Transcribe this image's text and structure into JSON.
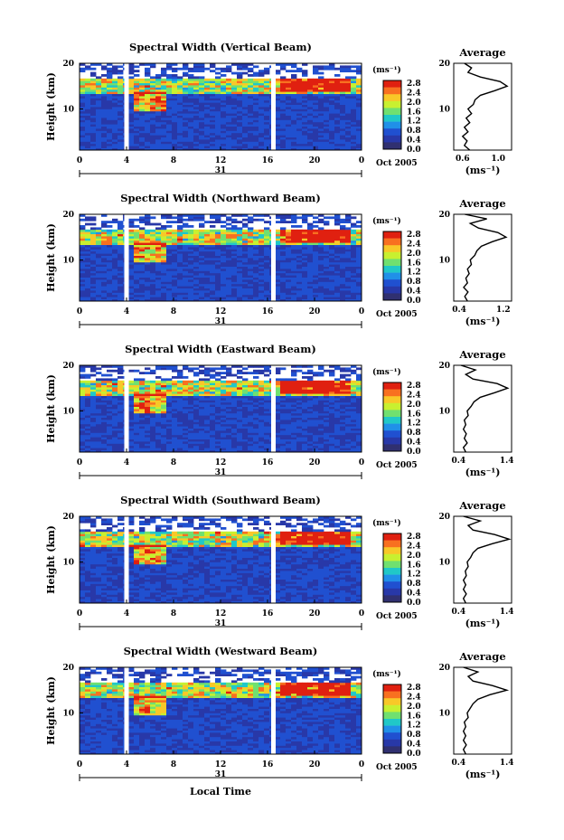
{
  "figure": {
    "xaxis_label": "Local Time",
    "date_label": "Oct 2005",
    "day_label": "31",
    "unit_label": "(ms⁻¹)",
    "average_title": "Average",
    "height_label": "Height (km)"
  },
  "colorbar": {
    "ticks": [
      "2.8",
      "2.4",
      "2.0",
      "1.6",
      "1.2",
      "0.8",
      "0.4",
      "0.0"
    ],
    "colors": [
      "#e02010",
      "#f87020",
      "#f8c828",
      "#c8f030",
      "#70e070",
      "#20c8c8",
      "#2090e8",
      "#2050d0",
      "#2838a8",
      "#303070"
    ]
  },
  "chart_data": [
    {
      "type": "heatmap",
      "title": "Spectral Width (Vertical Beam)",
      "xlabel": "",
      "ylabel": "Height (km)",
      "xlim": [
        0,
        24
      ],
      "ylim": [
        1,
        20
      ],
      "xticks": [
        "0",
        "4",
        "8",
        "12",
        "16",
        "20",
        "0"
      ],
      "yticks": [
        "20",
        "10"
      ],
      "gaps_hours": [
        4,
        16.5
      ],
      "colorbar_range": [
        0,
        3.0
      ],
      "average_profile": {
        "xlabel": "(ms⁻¹)",
        "xticks": [
          "0.6",
          "1.0"
        ],
        "xlim": [
          0.5,
          1.15
        ],
        "height": [
          1,
          2,
          3,
          4,
          5,
          6,
          7,
          8,
          9,
          10,
          11,
          12,
          13,
          14,
          15,
          16,
          17,
          18,
          19,
          20
        ],
        "value": [
          0.68,
          0.62,
          0.65,
          0.6,
          0.66,
          0.62,
          0.68,
          0.64,
          0.7,
          0.66,
          0.72,
          0.74,
          0.8,
          0.96,
          1.1,
          1.02,
          0.8,
          0.66,
          0.7,
          0.62
        ]
      }
    },
    {
      "type": "heatmap",
      "title": "Spectral Width (Northward Beam)",
      "xlabel": "",
      "ylabel": "Height (km)",
      "xlim": [
        0,
        24
      ],
      "ylim": [
        1,
        20
      ],
      "xticks": [
        "0",
        "4",
        "8",
        "12",
        "16",
        "20",
        "0"
      ],
      "yticks": [
        "20",
        "10"
      ],
      "gaps_hours": [
        4,
        16.5
      ],
      "colorbar_range": [
        0,
        3.0
      ],
      "average_profile": {
        "xlabel": "(ms⁻¹)",
        "xticks": [
          "0.4",
          "1.2"
        ],
        "xlim": [
          0.3,
          1.35
        ],
        "height": [
          1,
          2,
          3,
          4,
          5,
          6,
          7,
          8,
          9,
          10,
          11,
          12,
          13,
          14,
          15,
          16,
          17,
          18,
          19,
          20
        ],
        "value": [
          0.55,
          0.5,
          0.56,
          0.48,
          0.55,
          0.52,
          0.58,
          0.55,
          0.62,
          0.6,
          0.68,
          0.72,
          0.8,
          1.0,
          1.25,
          1.1,
          0.75,
          0.6,
          0.9,
          0.5
        ]
      }
    },
    {
      "type": "heatmap",
      "title": "Spectral Width (Eastward Beam)",
      "xlabel": "",
      "ylabel": "Height (km)",
      "xlim": [
        0,
        24
      ],
      "ylim": [
        1,
        20
      ],
      "xticks": [
        "0",
        "4",
        "8",
        "12",
        "16",
        "20",
        "0"
      ],
      "yticks": [
        "20",
        "10"
      ],
      "gaps_hours": [
        4,
        16.5
      ],
      "colorbar_range": [
        0,
        3.0
      ],
      "average_profile": {
        "xlabel": "(ms⁻¹)",
        "xticks": [
          "0.4",
          "1.4"
        ],
        "xlim": [
          0.3,
          1.5
        ],
        "height": [
          1,
          2,
          3,
          4,
          5,
          6,
          7,
          8,
          9,
          10,
          11,
          12,
          13,
          14,
          15,
          16,
          17,
          18,
          19,
          20
        ],
        "value": [
          0.55,
          0.5,
          0.58,
          0.52,
          0.56,
          0.5,
          0.55,
          0.52,
          0.6,
          0.58,
          0.66,
          0.72,
          0.85,
          1.15,
          1.42,
          1.2,
          0.7,
          0.55,
          0.75,
          0.45
        ]
      }
    },
    {
      "type": "heatmap",
      "title": "Spectral Width (Southward Beam)",
      "xlabel": "",
      "ylabel": "Height (km)",
      "xlim": [
        0,
        24
      ],
      "ylim": [
        1,
        20
      ],
      "xticks": [
        "0",
        "4",
        "8",
        "12",
        "16",
        "20",
        "0"
      ],
      "yticks": [
        "20",
        "10"
      ],
      "gaps_hours": [
        4,
        16.5
      ],
      "colorbar_range": [
        0,
        3.0
      ],
      "average_profile": {
        "xlabel": "(ms⁻¹)",
        "xticks": [
          "0.4",
          "1.4"
        ],
        "xlim": [
          0.3,
          1.5
        ],
        "height": [
          1,
          2,
          3,
          4,
          5,
          6,
          7,
          8,
          9,
          10,
          11,
          12,
          13,
          14,
          15,
          16,
          17,
          18,
          19,
          20
        ],
        "value": [
          0.55,
          0.5,
          0.56,
          0.5,
          0.55,
          0.5,
          0.56,
          0.54,
          0.6,
          0.58,
          0.65,
          0.7,
          0.8,
          1.1,
          1.45,
          1.15,
          0.7,
          0.6,
          0.85,
          0.5
        ]
      }
    },
    {
      "type": "heatmap",
      "title": "Spectral Width (Westward Beam)",
      "xlabel": "Local Time",
      "ylabel": "Height (km)",
      "xlim": [
        0,
        24
      ],
      "ylim": [
        1,
        20
      ],
      "xticks": [
        "0",
        "4",
        "8",
        "12",
        "16",
        "20",
        "0"
      ],
      "yticks": [
        "20",
        "10"
      ],
      "gaps_hours": [
        4,
        16.5
      ],
      "colorbar_range": [
        0,
        3.0
      ],
      "average_profile": {
        "xlabel": "(ms⁻¹)",
        "xticks": [
          "0.4",
          "1.4"
        ],
        "xlim": [
          0.3,
          1.5
        ],
        "height": [
          1,
          2,
          3,
          4,
          5,
          6,
          7,
          8,
          9,
          10,
          11,
          12,
          13,
          14,
          15,
          16,
          17,
          18,
          19,
          20
        ],
        "value": [
          0.55,
          0.5,
          0.56,
          0.5,
          0.55,
          0.5,
          0.55,
          0.52,
          0.6,
          0.58,
          0.64,
          0.7,
          0.8,
          1.05,
          1.4,
          1.1,
          0.7,
          0.6,
          0.8,
          0.5
        ]
      }
    }
  ]
}
